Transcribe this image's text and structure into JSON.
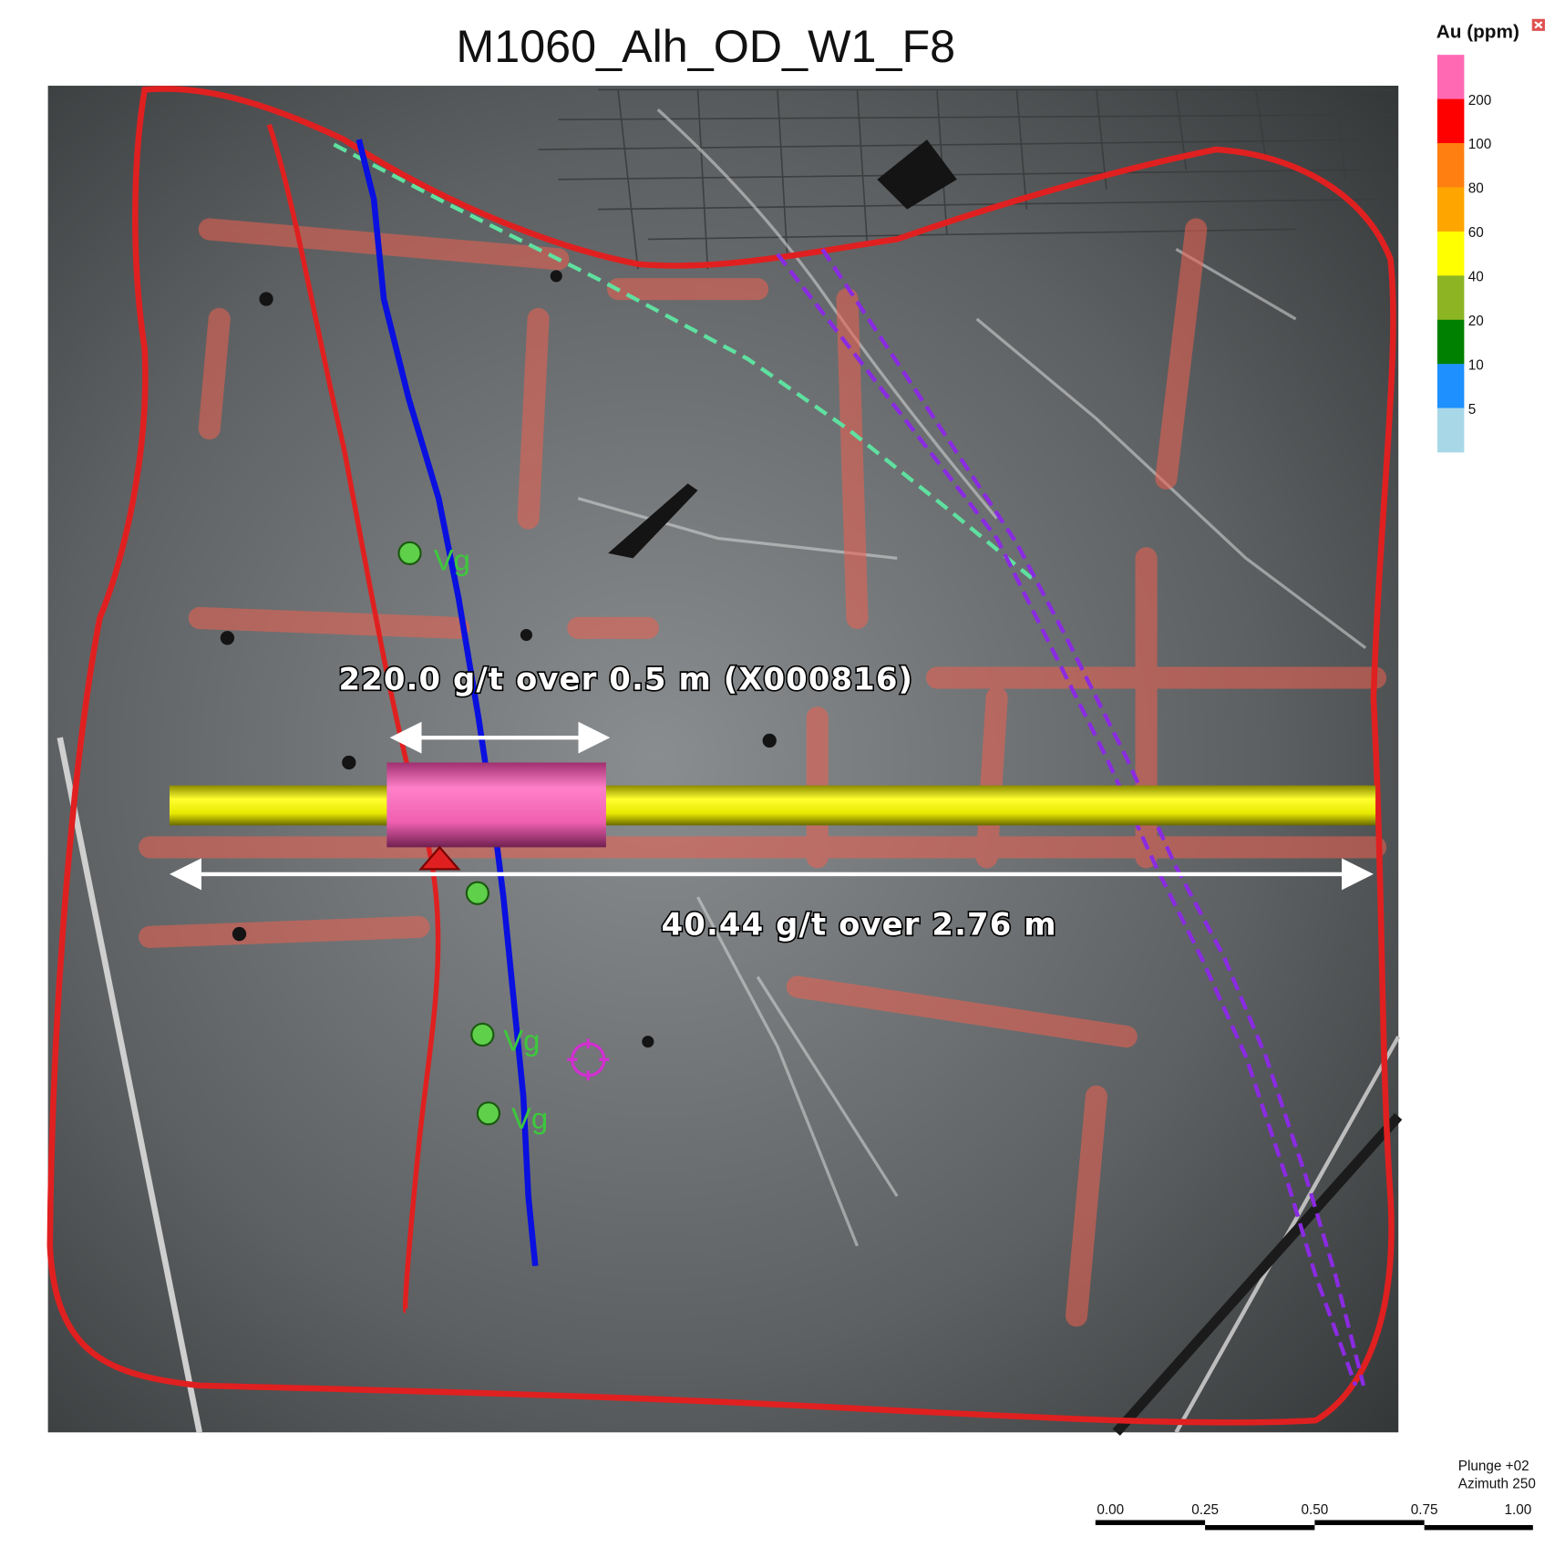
{
  "title": "M1060_Alh_OD_W1_F8",
  "annotations": {
    "interval_high": "220.0 g/t over 0.5 m (X000816)",
    "interval_full": "40.44 g/t over 2.76 m",
    "vg_labels": [
      "Vg",
      "Vg",
      "Vg"
    ]
  },
  "legend": {
    "title": "Au (ppm)",
    "close_icon": "close-icon",
    "bins": [
      {
        "color": "#ff69b4",
        "label": "200"
      },
      {
        "color": "#ff0000",
        "label": "100"
      },
      {
        "color": "#ff7f11",
        "label": "80"
      },
      {
        "color": "#ffa500",
        "label": "60"
      },
      {
        "color": "#ffff00",
        "label": "40"
      },
      {
        "color": "#8db523",
        "label": "20"
      },
      {
        "color": "#008000",
        "label": "10"
      },
      {
        "color": "#1e90ff",
        "label": "5"
      },
      {
        "color": "#a8d8e8",
        "label": ""
      }
    ]
  },
  "view": {
    "plunge": "Plunge +02",
    "azimuth": "Azimuth 250"
  },
  "scale_bar": {
    "ticks": [
      "0.00",
      "0.25",
      "0.50",
      "0.75",
      "1.00"
    ]
  },
  "colors": {
    "outline": "#e02020",
    "vein_trace": "#0a10e0",
    "structure_dashed": "#8a2be2",
    "contact_dashed": "#5fe0a0",
    "drillhole_low": "#ffff00",
    "drillhole_high": "#ff69b4"
  }
}
